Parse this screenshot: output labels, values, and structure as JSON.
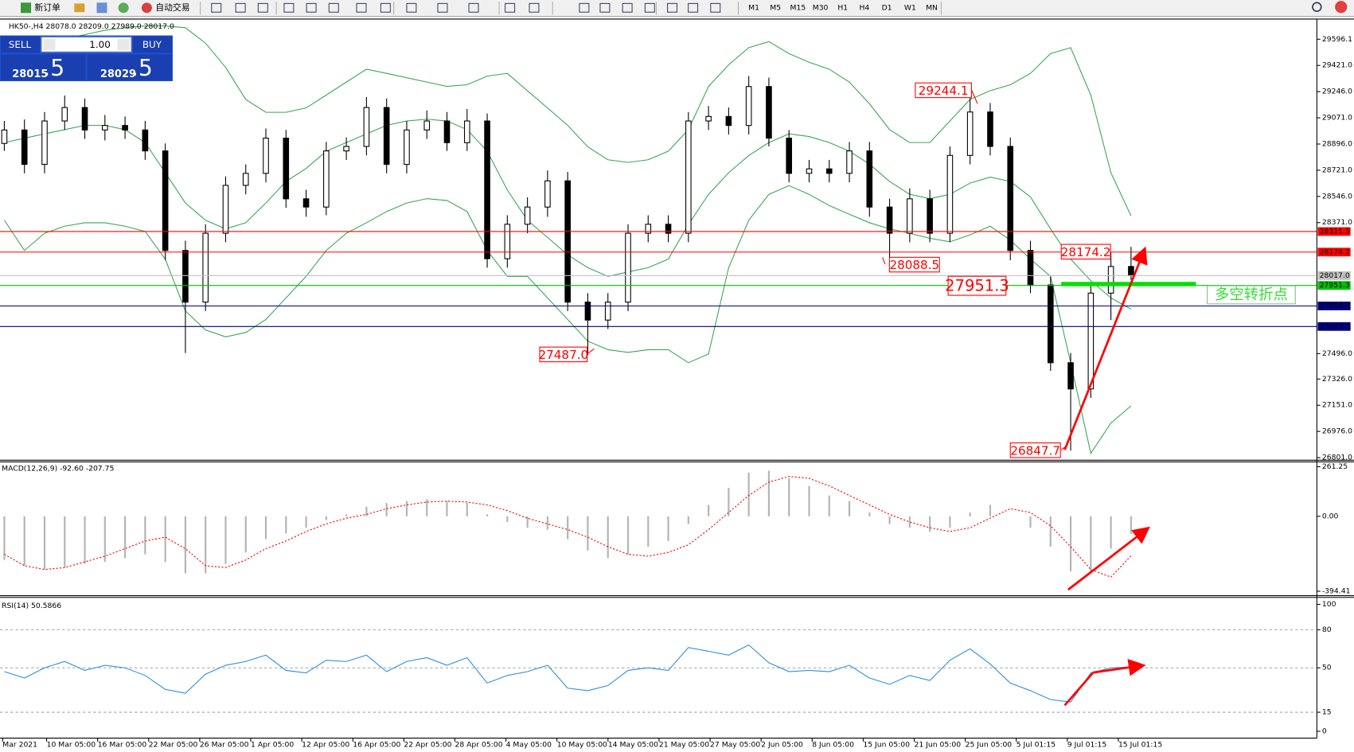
{
  "toolbar": {
    "new_order": "新订单",
    "auto_trading": "自动交易",
    "timeframes": [
      "M1",
      "M5",
      "M15",
      "M30",
      "H1",
      "H4",
      "D1",
      "W1",
      "MN"
    ]
  },
  "trade_panel": {
    "sell": "SELL",
    "buy": "BUY",
    "lot": "1.00",
    "sell_price": "28015",
    "sell_fraction": ".5",
    "buy_price": "28029",
    "buy_fraction": ".5"
  },
  "chart_data": [
    {
      "type": "candlestick",
      "title": "HK50-,H4  28078.0 28209.0 27989.0 28017.0",
      "ylim": [
        26784,
        29731
      ],
      "yticks": [
        29596.1,
        {
          "value": 29421,
          "label": "29421.0"
        },
        {
          "value": 29246,
          "label": "29246.0"
        },
        {
          "value": 29071,
          "label": "29071.0"
        },
        {
          "value": 28896,
          "label": "28896.0"
        },
        {
          "value": 28721,
          "label": "28721.0"
        },
        {
          "value": 28546,
          "label": "28546.0"
        },
        {
          "value": 28371,
          "label": "28371.0"
        },
        {
          "value": 27496,
          "label": "27496.0"
        },
        {
          "value": 27326,
          "label": "27326.0"
        },
        {
          "value": 27151,
          "label": "27151.0"
        },
        {
          "value": 26976,
          "label": "26976.0"
        },
        {
          "value": 26801,
          "label": "26801.0"
        }
      ],
      "candles": [
        {
          "open": 28900,
          "high": 29050,
          "low": 28850,
          "close": 28990
        },
        {
          "open": 28990,
          "high": 29060,
          "low": 28700,
          "close": 28760
        },
        {
          "open": 28760,
          "high": 29110,
          "low": 28700,
          "close": 29050
        },
        {
          "open": 29050,
          "high": 29220,
          "low": 28990,
          "close": 29140
        },
        {
          "open": 29140,
          "high": 29200,
          "low": 28930,
          "close": 28990
        },
        {
          "open": 28990,
          "high": 29090,
          "low": 28920,
          "close": 29020
        },
        {
          "open": 29020,
          "high": 29080,
          "low": 28930,
          "close": 28990
        },
        {
          "open": 28990,
          "high": 29050,
          "low": 28790,
          "close": 28850
        },
        {
          "open": 28850,
          "high": 28900,
          "low": 28120,
          "close": 28185
        },
        {
          "open": 28185,
          "high": 28250,
          "low": 27500,
          "close": 27840
        },
        {
          "open": 27840,
          "high": 28360,
          "low": 27780,
          "close": 28300
        },
        {
          "open": 28300,
          "high": 28680,
          "low": 28240,
          "close": 28620
        },
        {
          "open": 28620,
          "high": 28760,
          "low": 28560,
          "close": 28700
        },
        {
          "open": 28700,
          "high": 29000,
          "low": 28640,
          "close": 28935
        },
        {
          "open": 28935,
          "high": 28990,
          "low": 28470,
          "close": 28530
        },
        {
          "open": 28530,
          "high": 28590,
          "low": 28410,
          "close": 28475
        },
        {
          "open": 28475,
          "high": 28910,
          "low": 28420,
          "close": 28850
        },
        {
          "open": 28850,
          "high": 28940,
          "low": 28790,
          "close": 28880
        },
        {
          "open": 28880,
          "high": 29210,
          "low": 28820,
          "close": 29140
        },
        {
          "open": 29140,
          "high": 29200,
          "low": 28700,
          "close": 28760
        },
        {
          "open": 28760,
          "high": 29050,
          "low": 28700,
          "close": 28990
        },
        {
          "open": 28990,
          "high": 29120,
          "low": 28930,
          "close": 29050
        },
        {
          "open": 29050,
          "high": 29110,
          "low": 28850,
          "close": 28905
        },
        {
          "open": 28905,
          "high": 29130,
          "low": 28850,
          "close": 29050
        },
        {
          "open": 29050,
          "high": 29100,
          "low": 28070,
          "close": 28130
        },
        {
          "open": 28130,
          "high": 28420,
          "low": 28070,
          "close": 28360
        },
        {
          "open": 28360,
          "high": 28540,
          "low": 28300,
          "close": 28475
        },
        {
          "open": 28475,
          "high": 28720,
          "low": 28410,
          "close": 28650
        },
        {
          "open": 28650,
          "high": 28710,
          "low": 27780,
          "close": 27840
        },
        {
          "open": 27840,
          "high": 27900,
          "low": 27487,
          "close": 27720
        },
        {
          "open": 27720,
          "high": 27900,
          "low": 27660,
          "close": 27840
        },
        {
          "open": 27840,
          "high": 28360,
          "low": 27780,
          "close": 28300
        },
        {
          "open": 28300,
          "high": 28420,
          "low": 28240,
          "close": 28360
        },
        {
          "open": 28360,
          "high": 28420,
          "low": 28240,
          "close": 28300
        },
        {
          "open": 28300,
          "high": 29110,
          "low": 28240,
          "close": 29050
        },
        {
          "open": 29050,
          "high": 29150,
          "low": 28990,
          "close": 29080
        },
        {
          "open": 29080,
          "high": 29140,
          "low": 28960,
          "close": 29020
        },
        {
          "open": 29020,
          "high": 29350,
          "low": 28960,
          "close": 29280
        },
        {
          "open": 29280,
          "high": 29340,
          "low": 28880,
          "close": 28935
        },
        {
          "open": 28935,
          "high": 28990,
          "low": 28640,
          "close": 28700
        },
        {
          "open": 28700,
          "high": 28790,
          "low": 28640,
          "close": 28730
        },
        {
          "open": 28730,
          "high": 28790,
          "low": 28640,
          "close": 28700
        },
        {
          "open": 28700,
          "high": 28910,
          "low": 28640,
          "close": 28850
        },
        {
          "open": 28850,
          "high": 28910,
          "low": 28410,
          "close": 28475
        },
        {
          "open": 28475,
          "high": 28530,
          "low": 28088.5,
          "close": 28300
        },
        {
          "open": 28300,
          "high": 28600,
          "low": 28240,
          "close": 28530
        },
        {
          "open": 28530,
          "high": 28590,
          "low": 28240,
          "close": 28300
        },
        {
          "open": 28300,
          "high": 28880,
          "low": 28240,
          "close": 28820
        },
        {
          "open": 28820,
          "high": 29244.1,
          "low": 28760,
          "close": 29110
        },
        {
          "open": 29110,
          "high": 29170,
          "low": 28820,
          "close": 28880
        },
        {
          "open": 28880,
          "high": 28940,
          "low": 28120,
          "close": 28185
        },
        {
          "open": 28185,
          "high": 28250,
          "low": 27900,
          "close": 27955
        },
        {
          "open": 27955,
          "high": 28010,
          "low": 27380,
          "close": 27435
        },
        {
          "open": 27435,
          "high": 27500,
          "low": 26847.7,
          "close": 27260
        },
        {
          "open": 27260,
          "high": 27960,
          "low": 27200,
          "close": 27900
        },
        {
          "open": 27900,
          "high": 28174.2,
          "low": 27720,
          "close": 28078
        },
        {
          "open": 28078,
          "high": 28209,
          "low": 27989,
          "close": 28017
        }
      ],
      "bands": {
        "color": "#3aa655",
        "upper": [
          29523,
          29552,
          29580,
          29598,
          29627,
          29656,
          29673,
          29685,
          29685,
          29673,
          29570,
          29408,
          29194,
          29108,
          29108,
          29137,
          29223,
          29310,
          29396,
          29368,
          29339,
          29310,
          29281,
          29292,
          29350,
          29368,
          29252,
          29137,
          29021,
          28877,
          28791,
          28773,
          28791,
          28848,
          28992,
          29281,
          29425,
          29540,
          29580,
          29500,
          29442,
          29396,
          29310,
          29165,
          28992,
          28906,
          28906,
          29050,
          29194,
          29252,
          29292,
          29368,
          29500,
          29540,
          29223,
          28704,
          28416
        ],
        "middle": [
          28906,
          28935,
          28964,
          28992,
          29021,
          29021,
          28992,
          28906,
          28704,
          28502,
          28387,
          28329,
          28370,
          28502,
          28646,
          28733,
          28848,
          28906,
          28964,
          29021,
          29050,
          29062,
          29050,
          28992,
          28848,
          28589,
          28387,
          28272,
          28156,
          28070,
          28012,
          28041,
          28070,
          28127,
          28358,
          28560,
          28704,
          28819,
          28906,
          28964,
          28946,
          28906,
          28848,
          28762,
          28646,
          28560,
          28531,
          28560,
          28635,
          28675,
          28646,
          28543,
          28329,
          28127,
          27983,
          27868,
          27793
        ],
        "lower": [
          28387,
          28185,
          28300,
          28347,
          28370,
          28370,
          28347,
          28312,
          28127,
          27781,
          27654,
          27608,
          27637,
          27724,
          27868,
          28012,
          28185,
          28300,
          28370,
          28445,
          28502,
          28531,
          28519,
          28445,
          28185,
          28012,
          28012,
          27868,
          27724,
          27579,
          27522,
          27504,
          27522,
          27522,
          27435,
          27493,
          28070,
          28387,
          28560,
          28618,
          28560,
          28485,
          28427,
          28370,
          28329,
          28300,
          28266,
          28243,
          28289,
          28347,
          28254,
          28127,
          28012,
          27435,
          26830,
          27032,
          27147
        ]
      },
      "levels": [
        {
          "value": 28311.3,
          "color": "#ff0000"
        },
        {
          "value": 28174.2,
          "color": "#ff0000"
        },
        {
          "value": 28017,
          "label": "28017.0",
          "color": "#c0c0c0"
        },
        {
          "value": 27951.3,
          "color": "#00c000"
        },
        {
          "value": 27814.2,
          "color": "#000080"
        },
        {
          "value": 27677.1,
          "color": "#000080"
        }
      ],
      "annotations": [
        "29244.1",
        "28088.5",
        "27951.3",
        "28174.2",
        "27487.0",
        "26847.7"
      ],
      "pivot_label": "多空转折点"
    },
    {
      "type": "macd",
      "title": "MACD(12,26,9) -92.60 -207.75",
      "ylim": [
        -418,
        282
      ],
      "yticks": [
        261.25,
        {
          "value": 0,
          "label": "0.00"
        },
        -394.41
      ],
      "histogram": [
        -230,
        -260,
        -280,
        -270,
        -250,
        -240,
        -220,
        -200,
        -240,
        -300,
        -300,
        -250,
        -190,
        -120,
        -90,
        -60,
        -20,
        10,
        50,
        70,
        80,
        90,
        80,
        70,
        10,
        -30,
        -60,
        -70,
        -120,
        -180,
        -220,
        -200,
        -160,
        -130,
        -40,
        60,
        150,
        230,
        240,
        200,
        160,
        110,
        80,
        20,
        -40,
        -60,
        -80,
        -60,
        20,
        60,
        0,
        -60,
        -160,
        -290,
        -300,
        -170,
        -92.6
      ],
      "signal": [
        -200,
        -260,
        -280,
        -270,
        -240,
        -210,
        -170,
        -130,
        -110,
        -170,
        -260,
        -270,
        -230,
        -170,
        -130,
        -80,
        -40,
        -10,
        10,
        40,
        60,
        75,
        80,
        75,
        60,
        30,
        -10,
        -40,
        -70,
        -110,
        -160,
        -200,
        -210,
        -190,
        -150,
        -70,
        20,
        110,
        180,
        210,
        200,
        160,
        110,
        60,
        10,
        -30,
        -60,
        -80,
        -60,
        -10,
        40,
        20,
        -50,
        -160,
        -280,
        -320,
        -207.75
      ],
      "histogram_color": "#b4b4b4",
      "signal_color": "#ff0000"
    },
    {
      "type": "line",
      "title": "RSI(14) 50.5866",
      "ylim": [
        -5.4,
        104.8
      ],
      "yticks": [
        100,
        80,
        50,
        15,
        0
      ],
      "grid_levels": [
        80,
        50,
        15
      ],
      "values": [
        47,
        42,
        50,
        55,
        48,
        52,
        50,
        44,
        33,
        30,
        45,
        52,
        55,
        60,
        48,
        46,
        56,
        55,
        60,
        47,
        55,
        58,
        52,
        58,
        38,
        44,
        47,
        52,
        34,
        32,
        36,
        48,
        50,
        48,
        66,
        63,
        60,
        68,
        54,
        47,
        48,
        47,
        52,
        42,
        37,
        44,
        40,
        56,
        65,
        53,
        38,
        32,
        25,
        23,
        46,
        50,
        50.5866
      ],
      "color": "#2b8fe0"
    }
  ],
  "time_axis": [
    "Mar 2021",
    "10 Mar 05:00",
    "16 Mar 05:00",
    "22 Mar 05:00",
    "26 Mar 05:00",
    "1 Apr 05:00",
    "12 Apr 05:00",
    "16 Apr 05:00",
    "22 Apr 05:00",
    "28 Apr 05:00",
    "4 May 05:00",
    "10 May 05:00",
    "14 May 05:00",
    "21 May 05:00",
    "27 May 05:00",
    "2 Jun 05:00",
    "8 Jun 05:00",
    "15 Jun 05:00",
    "21 Jun 05:00",
    "25 Jun 05:00",
    "5 Jul 01:15",
    "9 Jul 01:15",
    "15 Jul 01:15"
  ]
}
